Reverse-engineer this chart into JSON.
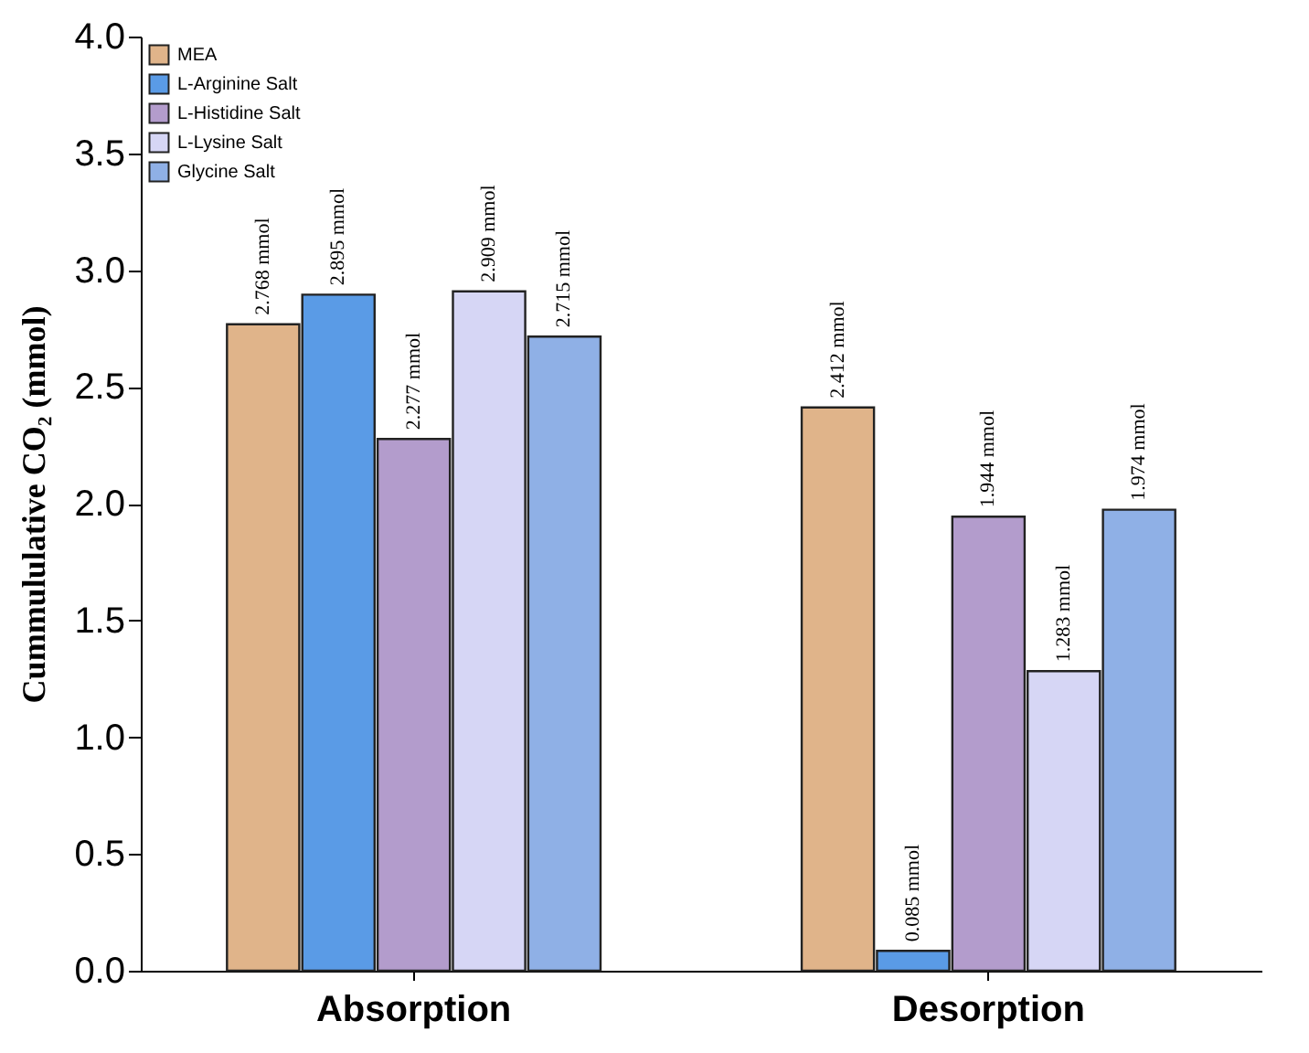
{
  "chart_data": {
    "type": "bar",
    "ylabel": "Cummululative CO₂ (mmol)",
    "categories": [
      "Absorption",
      "Desorption"
    ],
    "series": [
      {
        "name": "MEA",
        "color": "#e0b48a",
        "values": [
          2.768,
          2.412
        ],
        "value_labels": [
          "2.768 mmol",
          "2.412 mmol"
        ]
      },
      {
        "name": "L-Arginine Salt",
        "color": "#5a9be6",
        "values": [
          2.895,
          0.085
        ],
        "value_labels": [
          "2.895 mmol",
          "0.085 mmol"
        ]
      },
      {
        "name": "L-Histidine Salt",
        "color": "#b39ccc",
        "values": [
          2.277,
          1.944
        ],
        "value_labels": [
          "2.277 mmol",
          "1.944 mmol"
        ]
      },
      {
        "name": "L-Lysine Salt",
        "color": "#d6d6f5",
        "values": [
          2.909,
          1.283
        ],
        "value_labels": [
          "2.909 mmol",
          "1.283 mmol"
        ]
      },
      {
        "name": "Glycine Salt",
        "color": "#8fb0e6",
        "values": [
          2.715,
          1.974
        ],
        "value_labels": [
          "2.715 mmol",
          "1.974 mmol"
        ]
      }
    ],
    "ylim": [
      0,
      4.0
    ],
    "yticks": [
      {
        "value": 0,
        "label": "0.0"
      },
      {
        "value": 0.5,
        "label": "0.5"
      },
      {
        "value": 1,
        "label": "1.0"
      },
      {
        "value": 1.5,
        "label": "1.5"
      },
      {
        "value": 2,
        "label": "2.0"
      },
      {
        "value": 2.5,
        "label": "2.5"
      },
      {
        "value": 3,
        "label": "3.0"
      },
      {
        "value": 3.5,
        "label": "3.5"
      },
      {
        "value": 4,
        "label": "4.0"
      }
    ],
    "grid": false,
    "legend": "top left"
  }
}
